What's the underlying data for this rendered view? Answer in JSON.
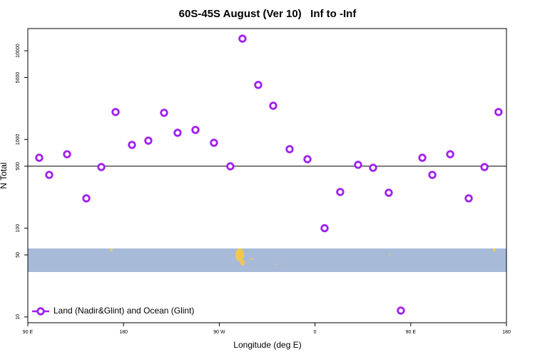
{
  "chart_data": {
    "type": "scatter",
    "title": "60S-45S August (Ver 10)   Inf to -Inf",
    "xlabel": "Longitude (deg E)",
    "ylabel": "N Total",
    "xlim": [
      90,
      540
    ],
    "xticks": [
      {
        "value": 90,
        "label": "90 E"
      },
      180,
      {
        "value": 270,
        "label": "90 W"
      },
      {
        "value": 360,
        "label": "0"
      },
      {
        "value": 450,
        "label": "90 E"
      },
      {
        "value": 540,
        "label": "180"
      }
    ],
    "ylim": [
      8.6,
      17800
    ],
    "yticks": [
      10,
      50,
      100,
      500,
      1000,
      5000,
      10000
    ],
    "log_y": true,
    "hline": 500,
    "legend": "bottom-left",
    "series": [
      {
        "name": "Land (Nadir&Glint) and Ocean (Glint)",
        "color": "#a020f0",
        "x": [
          100.7,
          110.1,
          126.9,
          145,
          159.1,
          172.5,
          187.9,
          203.3,
          218.1,
          230.8,
          247.6,
          265,
          280.4,
          291.8,
          306.6,
          320.7,
          336.1,
          352.9,
          369,
          383.7,
          400.5,
          414.6,
          429.3,
          440.7,
          460.9,
          470.3,
          487.1,
          504.5,
          519.3,
          532.5
        ],
        "values": [
          622,
          399,
          682,
          217,
          489,
          2040,
          869,
          970,
          2000,
          1190,
          1282,
          918,
          498,
          13700,
          4120,
          2400,
          778,
          600,
          100,
          256,
          518,
          480,
          251,
          11.8,
          622,
          399,
          682,
          217,
          489,
          2040
        ]
      }
    ]
  }
}
